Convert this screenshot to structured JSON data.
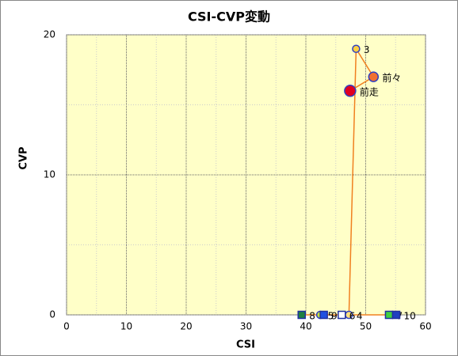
{
  "chart_data": {
    "type": "scatter",
    "title": "CSI-CVP変動",
    "x_label": "CSI",
    "y_label": "CVP",
    "xlim": [
      0,
      60
    ],
    "xticks": [
      0,
      10,
      20,
      30,
      40,
      50,
      60
    ],
    "ylim": [
      0,
      20
    ],
    "yticks": [
      0,
      10,
      20
    ],
    "grid": true,
    "line_color": "#f08020",
    "points": [
      {
        "name": "前走",
        "x": 47.4,
        "y": 16,
        "shape": "circle",
        "color": "#e00020",
        "size": 14
      },
      {
        "name": "前々",
        "x": 51.3,
        "y": 17,
        "shape": "circle",
        "color": "#f07030",
        "size": 12
      },
      {
        "name": "3",
        "x": 48.4,
        "y": 19,
        "shape": "circle",
        "color": "#ffd040",
        "size": 9
      },
      {
        "name": "4",
        "x": 47.2,
        "y": 0,
        "shape": "circle",
        "color": "#ffe080",
        "size": 9
      },
      {
        "name": "5",
        "x": 42.4,
        "y": 0,
        "shape": "circle",
        "color": "#c0e040",
        "size": 9
      },
      {
        "name": "6",
        "x": 46.0,
        "y": 0,
        "shape": "square",
        "color": "#ffffff",
        "size": 9
      },
      {
        "name": "7",
        "x": 53.9,
        "y": 0,
        "shape": "square",
        "color": "#40d040",
        "size": 9
      },
      {
        "name": "8",
        "x": 39.3,
        "y": 0,
        "shape": "square",
        "color": "#208040",
        "size": 9
      },
      {
        "name": "9",
        "x": 43.0,
        "y": 0,
        "shape": "square",
        "color": "#2050e0",
        "size": 9
      },
      {
        "name": "10",
        "x": 55.1,
        "y": 0,
        "shape": "square",
        "color": "#2040c0",
        "size": 9
      }
    ]
  }
}
